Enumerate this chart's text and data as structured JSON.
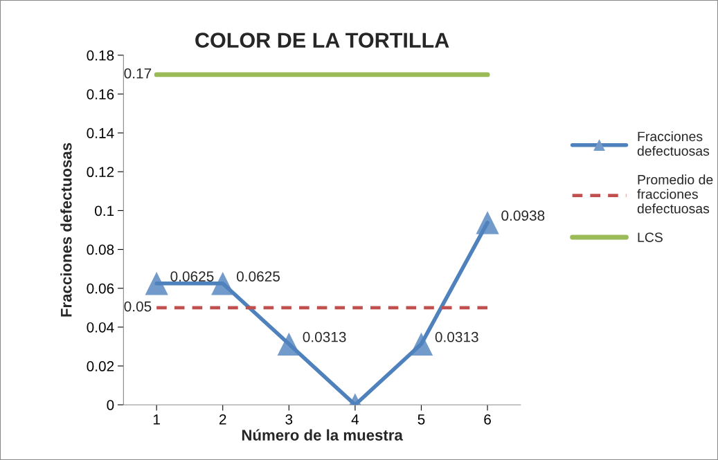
{
  "chart_data": {
    "type": "line",
    "title": "COLOR DE LA TORTILLA",
    "xlabel": "Número de la muestra",
    "ylabel": "Fracciones defectuosas",
    "categories": [
      "1",
      "2",
      "3",
      "4",
      "5",
      "6"
    ],
    "series": [
      {
        "name": "Fracciones defectuosas",
        "color": "#4f81bd",
        "marker": "triangle",
        "line_style": "solid",
        "values": [
          0.0625,
          0.0625,
          0.0313,
          0,
          0.0313,
          0.0938
        ],
        "value_labels": [
          "0.0625",
          "0.0625",
          "0.0313",
          null,
          "0.0313",
          "0.0938"
        ]
      },
      {
        "name": "Promedio de fracciones defectuosas",
        "color": "#c0504d",
        "marker": "none",
        "line_style": "dashed",
        "values": [
          0.05,
          0.05,
          0.05,
          0.05,
          0.05,
          0.05
        ],
        "value_labels": [
          "0.05",
          null,
          null,
          null,
          null,
          null
        ]
      },
      {
        "name": "LCS",
        "color": "#9bbb59",
        "marker": "none",
        "line_style": "solid",
        "values": [
          0.17,
          0.17,
          0.17,
          0.17,
          0.17,
          0.17
        ],
        "value_labels": [
          "0.17",
          null,
          null,
          null,
          null,
          null
        ]
      }
    ],
    "ylim": [
      0,
      0.18
    ],
    "yticks": [
      0,
      0.02,
      0.04,
      0.06,
      0.08,
      0.1,
      0.12,
      0.14,
      0.16,
      0.18
    ],
    "grid": false,
    "legend": "right"
  }
}
